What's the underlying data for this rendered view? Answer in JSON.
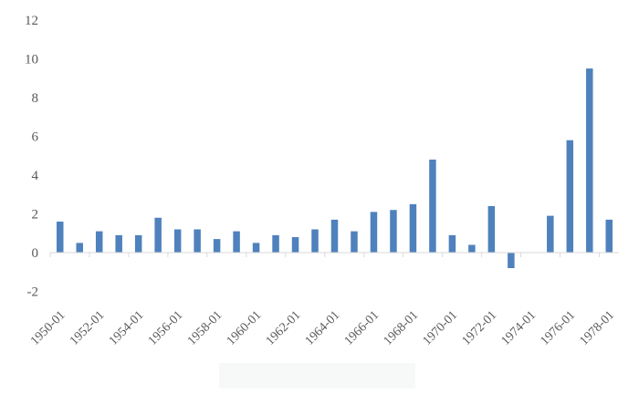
{
  "chart_data": {
    "type": "bar",
    "title": "",
    "xlabel": "",
    "ylabel": "",
    "ylim": [
      -2,
      12
    ],
    "y_ticks": [
      -2,
      0,
      2,
      4,
      6,
      8,
      10,
      12
    ],
    "grid": false,
    "legend": "none",
    "bar_color": "#4f81bd",
    "axis_color": "#d9d9d9",
    "text_color": "#595959",
    "categories": [
      "1950-01",
      "1951-01",
      "1952-01",
      "1953-01",
      "1954-01",
      "1955-01",
      "1956-01",
      "1957-01",
      "1958-01",
      "1959-01",
      "1960-01",
      "1961-01",
      "1962-01",
      "1963-01",
      "1964-01",
      "1965-01",
      "1966-01",
      "1967-01",
      "1968-01",
      "1969-01",
      "1970-01",
      "1971-01",
      "1972-01",
      "1973-01",
      "1974-01",
      "1975-01",
      "1976-01",
      "1977-01",
      "1978-01"
    ],
    "values": [
      1.6,
      0.5,
      1.1,
      0.9,
      0.9,
      1.8,
      1.2,
      1.2,
      0.7,
      1.1,
      0.5,
      0.9,
      0.8,
      1.2,
      1.7,
      1.1,
      2.1,
      2.2,
      2.5,
      4.8,
      0.9,
      0.4,
      2.4,
      -0.8,
      0.0,
      1.9,
      5.8,
      9.5,
      1.7
    ],
    "x_tick_labels": [
      "1950-01",
      "1952-01",
      "1954-01",
      "1956-01",
      "1958-01",
      "1960-01",
      "1962-01",
      "1964-01",
      "1966-01",
      "1968-01",
      "1970-01",
      "1972-01",
      "1974-01",
      "1976-01",
      "1978-01"
    ]
  }
}
